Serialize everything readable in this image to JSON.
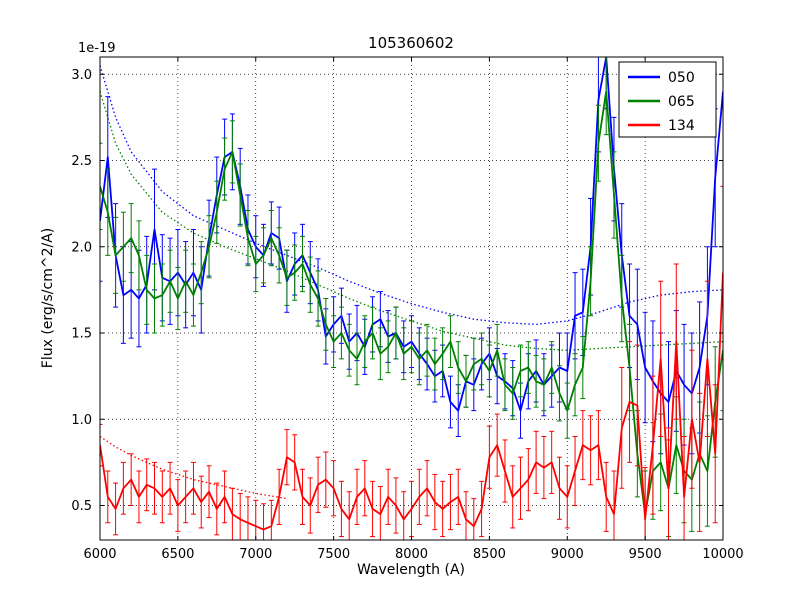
{
  "chart_data": {
    "type": "line",
    "title": "105360602",
    "xlabel": "Wavelength (A)",
    "ylabel": "Flux (erg/s/cm^2/A)",
    "y_offset_factor": "1e-19",
    "xlim": [
      6000,
      10000
    ],
    "ylim": [
      0.3,
      3.1
    ],
    "xticks": [
      6000,
      6500,
      7000,
      7500,
      8000,
      8500,
      9000,
      9500,
      10000
    ],
    "yticks": [
      0.5,
      1.0,
      1.5,
      2.0,
      2.5,
      3.0
    ],
    "grid": true,
    "legend_position": "upper right",
    "x_start": 6000,
    "x_step": 50,
    "series": [
      {
        "name": "050",
        "color": "#0000ff",
        "values": [
          2.15,
          2.52,
          1.95,
          1.72,
          1.75,
          1.7,
          1.78,
          2.1,
          1.82,
          1.8,
          1.85,
          1.78,
          1.85,
          1.75,
          2.05,
          2.3,
          2.52,
          2.55,
          2.35,
          2.1,
          2.0,
          1.95,
          2.08,
          2.05,
          1.8,
          1.9,
          1.95,
          1.85,
          1.75,
          1.48,
          1.55,
          1.6,
          1.45,
          1.5,
          1.42,
          1.55,
          1.58,
          1.48,
          1.5,
          1.42,
          1.45,
          1.38,
          1.32,
          1.25,
          1.28,
          1.1,
          1.05,
          1.22,
          1.2,
          1.32,
          1.38,
          1.25,
          1.22,
          1.18,
          1.05,
          1.22,
          1.28,
          1.2,
          1.25,
          1.3,
          1.28,
          1.6,
          1.62,
          2.0,
          2.85,
          3.1,
          2.45,
          1.95,
          1.6,
          1.55,
          1.3,
          1.22,
          1.15,
          1.1,
          1.28,
          1.2,
          1.15,
          1.3,
          1.6,
          2.4,
          2.9
        ],
        "errors": [
          0.35,
          0.35,
          0.3,
          0.28,
          0.28,
          0.28,
          0.28,
          0.35,
          0.25,
          0.25,
          0.25,
          0.25,
          0.25,
          0.25,
          0.22,
          0.22,
          0.22,
          0.22,
          0.22,
          0.2,
          0.18,
          0.18,
          0.18,
          0.18,
          0.18,
          0.18,
          0.18,
          0.18,
          0.18,
          0.16,
          0.16,
          0.16,
          0.16,
          0.16,
          0.16,
          0.16,
          0.16,
          0.15,
          0.15,
          0.15,
          0.15,
          0.15,
          0.15,
          0.15,
          0.15,
          0.15,
          0.15,
          0.15,
          0.15,
          0.15,
          0.15,
          0.16,
          0.16,
          0.16,
          0.16,
          0.16,
          0.18,
          0.18,
          0.18,
          0.2,
          0.22,
          0.25,
          0.25,
          0.28,
          0.3,
          0.3,
          0.3,
          0.3,
          0.3,
          0.32,
          0.32,
          0.35,
          0.35,
          0.35,
          0.35,
          0.35,
          0.35,
          0.38,
          0.4,
          0.4,
          0.4
        ]
      },
      {
        "name": "065",
        "color": "#008000",
        "values": [
          2.35,
          2.2,
          1.95,
          2.0,
          2.05,
          1.95,
          1.75,
          1.7,
          1.72,
          1.8,
          1.7,
          1.8,
          1.72,
          1.85,
          2.0,
          2.2,
          2.45,
          2.55,
          2.3,
          2.05,
          1.9,
          1.95,
          2.05,
          1.95,
          1.82,
          1.85,
          1.9,
          1.78,
          1.7,
          1.55,
          1.45,
          1.5,
          1.4,
          1.35,
          1.45,
          1.5,
          1.38,
          1.42,
          1.5,
          1.38,
          1.42,
          1.35,
          1.4,
          1.32,
          1.38,
          1.45,
          1.3,
          1.22,
          1.32,
          1.35,
          1.28,
          1.4,
          1.2,
          1.15,
          1.28,
          1.3,
          1.22,
          1.2,
          1.3,
          1.15,
          1.05,
          1.2,
          1.3,
          1.8,
          2.6,
          2.9,
          2.3,
          1.7,
          1.3,
          0.8,
          0.45,
          0.7,
          0.75,
          0.6,
          0.85,
          0.7,
          0.65,
          0.8,
          0.7,
          1.1,
          1.4
        ],
        "errors": [
          0.25,
          0.25,
          0.22,
          0.2,
          0.2,
          0.2,
          0.2,
          0.2,
          0.18,
          0.18,
          0.18,
          0.18,
          0.18,
          0.18,
          0.18,
          0.18,
          0.18,
          0.18,
          0.18,
          0.16,
          0.16,
          0.16,
          0.16,
          0.16,
          0.16,
          0.16,
          0.16,
          0.16,
          0.16,
          0.15,
          0.15,
          0.15,
          0.15,
          0.15,
          0.15,
          0.15,
          0.15,
          0.15,
          0.15,
          0.15,
          0.15,
          0.15,
          0.15,
          0.15,
          0.15,
          0.15,
          0.15,
          0.15,
          0.15,
          0.15,
          0.15,
          0.15,
          0.15,
          0.15,
          0.15,
          0.15,
          0.15,
          0.15,
          0.15,
          0.16,
          0.16,
          0.18,
          0.18,
          0.2,
          0.22,
          0.25,
          0.25,
          0.25,
          0.25,
          0.25,
          0.25,
          0.28,
          0.28,
          0.28,
          0.28,
          0.3,
          0.3,
          0.3,
          0.32,
          0.32,
          0.35
        ]
      },
      {
        "name": "134",
        "color": "#ff0000",
        "values": [
          0.85,
          0.55,
          0.48,
          0.6,
          0.65,
          0.55,
          0.62,
          0.6,
          0.55,
          0.6,
          0.5,
          0.55,
          0.6,
          0.52,
          0.58,
          0.48,
          0.55,
          0.45,
          0.42,
          0.4,
          0.38,
          0.36,
          0.38,
          0.55,
          0.78,
          0.75,
          0.55,
          0.5,
          0.62,
          0.65,
          0.6,
          0.48,
          0.42,
          0.55,
          0.6,
          0.48,
          0.45,
          0.55,
          0.5,
          0.42,
          0.48,
          0.55,
          0.6,
          0.52,
          0.48,
          0.52,
          0.55,
          0.42,
          0.38,
          0.48,
          0.78,
          0.85,
          0.7,
          0.55,
          0.6,
          0.65,
          0.75,
          0.72,
          0.75,
          0.6,
          0.55,
          0.7,
          0.85,
          0.82,
          0.85,
          0.55,
          0.45,
          0.95,
          1.1,
          1.08,
          0.42,
          0.85,
          1.35,
          0.6,
          1.45,
          0.55,
          1.0,
          0.75,
          1.35,
          0.8,
          1.85
        ],
        "errors": [
          0.12,
          0.15,
          0.15,
          0.15,
          0.15,
          0.15,
          0.15,
          0.15,
          0.15,
          0.15,
          0.15,
          0.15,
          0.15,
          0.15,
          0.15,
          0.15,
          0.15,
          0.15,
          0.15,
          0.15,
          0.15,
          0.15,
          0.15,
          0.16,
          0.16,
          0.16,
          0.16,
          0.16,
          0.16,
          0.16,
          0.16,
          0.16,
          0.16,
          0.16,
          0.16,
          0.16,
          0.16,
          0.16,
          0.16,
          0.16,
          0.16,
          0.16,
          0.16,
          0.16,
          0.16,
          0.16,
          0.16,
          0.16,
          0.16,
          0.16,
          0.18,
          0.18,
          0.18,
          0.18,
          0.18,
          0.18,
          0.18,
          0.18,
          0.18,
          0.18,
          0.18,
          0.2,
          0.2,
          0.2,
          0.2,
          0.2,
          0.25,
          0.35,
          0.35,
          0.35,
          0.3,
          0.4,
          0.45,
          0.35,
          0.45,
          0.35,
          0.4,
          0.4,
          0.45,
          0.4,
          0.5
        ]
      }
    ],
    "model_curves": [
      {
        "name": "050-model",
        "color": "#0000ff",
        "x": [
          6000,
          6100,
          6200,
          6400,
          6600,
          6800,
          7000,
          7200,
          7400,
          7600,
          7800,
          8000,
          8200,
          8400,
          8600,
          8800,
          9000,
          9200,
          9400,
          9600,
          9800,
          10000
        ],
        "y": [
          3.05,
          2.75,
          2.55,
          2.32,
          2.18,
          2.1,
          2.02,
          1.95,
          1.88,
          1.8,
          1.73,
          1.67,
          1.62,
          1.58,
          1.56,
          1.55,
          1.57,
          1.62,
          1.68,
          1.72,
          1.74,
          1.75
        ]
      },
      {
        "name": "065-model",
        "color": "#008000",
        "x": [
          6000,
          6100,
          6200,
          6400,
          6600,
          6800,
          7000,
          7200,
          7400,
          7600,
          7800,
          8000,
          8200,
          8400,
          8600,
          8800,
          9000,
          9200,
          9400,
          9600,
          9800,
          10000
        ],
        "y": [
          2.9,
          2.6,
          2.42,
          2.2,
          2.08,
          2.0,
          1.93,
          1.86,
          1.78,
          1.7,
          1.63,
          1.57,
          1.51,
          1.47,
          1.43,
          1.41,
          1.4,
          1.41,
          1.42,
          1.43,
          1.44,
          1.45
        ]
      },
      {
        "name": "134-model",
        "color": "#ff0000",
        "x": [
          6000,
          6100,
          6200,
          6400,
          6600,
          6800,
          7000,
          7200
        ],
        "y": [
          0.9,
          0.84,
          0.79,
          0.71,
          0.65,
          0.61,
          0.57,
          0.54
        ]
      }
    ]
  }
}
